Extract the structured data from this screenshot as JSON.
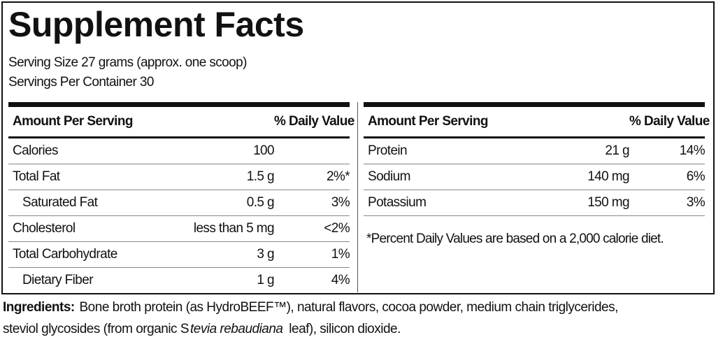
{
  "title": "Supplement Facts",
  "serving_size": "Serving Size 27 grams (approx. one scoop)",
  "servings_per_container": "Servings Per Container 30",
  "left": {
    "header_amount": "Amount Per Serving",
    "header_dv": "% Daily Value",
    "rows": [
      {
        "name": "Calories",
        "amount": "100",
        "dv": ""
      },
      {
        "name": "Total Fat",
        "amount": "1.5 g",
        "dv": "2%*"
      },
      {
        "name": "Saturated Fat",
        "amount": "0.5 g",
        "dv": "3%"
      },
      {
        "name": "Cholesterol",
        "amount": "less than 5 mg",
        "dv": "<2%"
      },
      {
        "name": "Total Carbohydrate",
        "amount": "3 g",
        "dv": "1%"
      },
      {
        "name": "Dietary Fiber",
        "amount": "1 g",
        "dv": "4%"
      }
    ]
  },
  "right": {
    "header_amount": "Amount Per Serving",
    "header_dv": "% Daily Value",
    "rows": [
      {
        "name": "Protein",
        "amount": "21 g",
        "dv": "14%"
      },
      {
        "name": "Sodium",
        "amount": "140 mg",
        "dv": "6%"
      },
      {
        "name": "Potassium",
        "amount": "150 mg",
        "dv": "3%"
      }
    ]
  },
  "footnote": "*Percent Daily Values are based on a 2,000 calorie diet.",
  "ingredients": {
    "label": "Ingredients:",
    "text1": " Bone broth protein (as HydroBEEF™), natural flavors, cocoa powder, medium chain triglycerides,",
    "text2": "steviol glycosides (from organic S",
    "italic": "tevia rebaudiana",
    "text3": " leaf), silicon dioxide."
  }
}
